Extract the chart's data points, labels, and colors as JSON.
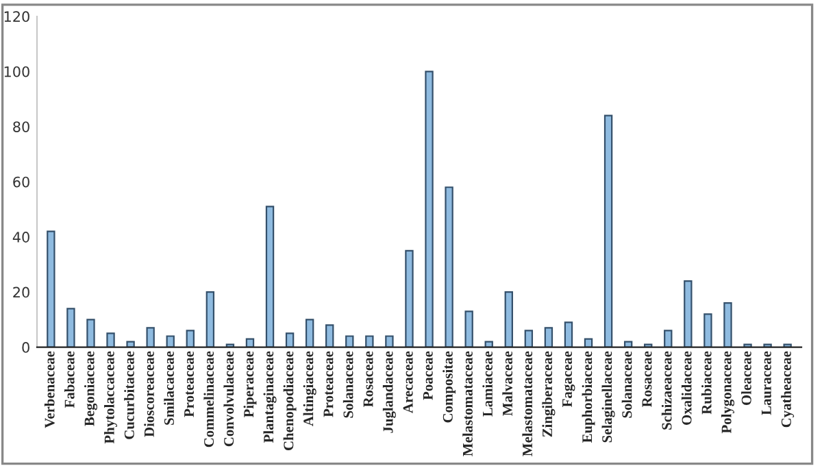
{
  "chart_data": {
    "type": "bar",
    "categories": [
      "Verbenaceae",
      "Fabaceae",
      "Begoniaceae",
      "Phytolaccaceae",
      "Cucurbitaceae",
      "Dioscoreaceae",
      "Smilacaceae",
      "Proteaceae",
      "Commelinaceae",
      "Convolvulaceae",
      "Piperaceae",
      "Plantaginaceae",
      "Chenopodiaceae",
      "Altingiaceae",
      "Proteaceae",
      "Solanaceae",
      "Rosaceae",
      "Juglandaceae",
      "Arecaceae",
      "Poaceae",
      "Compositae",
      "Melastomataceae",
      "Lamiaceae",
      "Malvaceae",
      "Melastomataceae",
      "Zingiberaceae",
      "Fagaceae",
      "Euphorbiaceae",
      "Selaginellaceae",
      "Solanaceae",
      "Rosaceae",
      "Schizaeaceae",
      "Oxalidaceae",
      "Rubiaceae",
      "Polygonaceae",
      "Oleaceae",
      "Lauraceae",
      "Cyatheaceae"
    ],
    "values": [
      42,
      14,
      10,
      5,
      2,
      7,
      4,
      6,
      20,
      1,
      3,
      51,
      5,
      10,
      8,
      4,
      4,
      4,
      35,
      100,
      58,
      13,
      2,
      20,
      6,
      7,
      9,
      3,
      84,
      2,
      1,
      6,
      24,
      12,
      16,
      1,
      1,
      1
    ],
    "color": "#8fbbe0",
    "ylim": [
      0,
      120
    ],
    "yticks": [
      0,
      20,
      40,
      60,
      80,
      100,
      120
    ],
    "grid": false,
    "legend": false
  }
}
